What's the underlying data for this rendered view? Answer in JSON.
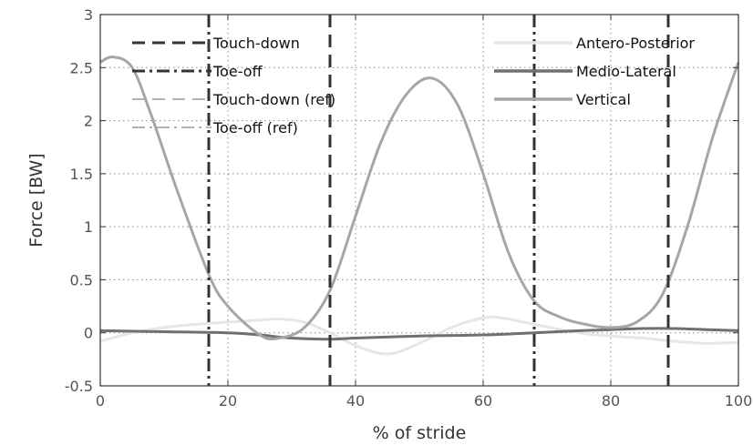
{
  "chart_data": {
    "type": "line",
    "xlabel": "% of stride",
    "ylabel": "Force [BW]",
    "xlim": [
      0,
      100
    ],
    "ylim": [
      -0.5,
      3
    ],
    "xticks": [
      0,
      20,
      40,
      60,
      80,
      100
    ],
    "yticks": [
      -0.5,
      0,
      0.5,
      1,
      1.5,
      2,
      2.5,
      3
    ],
    "grid": true,
    "legend_events_placement": "top-left",
    "legend_series_placement": "top-right",
    "series": [
      {
        "name": "Antero-Posterior",
        "color": "#e6e6e6",
        "x": [
          0,
          5,
          10,
          15,
          20,
          25,
          28,
          32,
          36,
          40,
          45,
          50,
          55,
          60,
          63,
          68,
          75,
          80,
          85,
          90,
          95,
          100
        ],
        "y": [
          -0.08,
          0.0,
          0.05,
          0.08,
          0.1,
          0.12,
          0.13,
          0.1,
          0.0,
          -0.12,
          -0.2,
          -0.1,
          0.05,
          0.14,
          0.14,
          0.08,
          0.0,
          -0.03,
          -0.05,
          -0.08,
          -0.1,
          -0.09
        ]
      },
      {
        "name": "Medio-Lateral",
        "color": "#707070",
        "x": [
          0,
          10,
          20,
          25,
          30,
          36,
          40,
          50,
          60,
          68,
          75,
          80,
          85,
          90,
          95,
          100
        ],
        "y": [
          0.02,
          0.01,
          0.0,
          -0.02,
          -0.05,
          -0.06,
          -0.05,
          -0.03,
          -0.02,
          0.0,
          0.02,
          0.03,
          0.04,
          0.04,
          0.03,
          0.02
        ]
      },
      {
        "name": "Vertical",
        "color": "#a6a6a6",
        "x": [
          0,
          2,
          5,
          8,
          12,
          17,
          20,
          25,
          28,
          32,
          36,
          40,
          44,
          48,
          52,
          56,
          60,
          64,
          68,
          72,
          76,
          80,
          84,
          88,
          92,
          96,
          100
        ],
        "y": [
          2.55,
          2.6,
          2.5,
          2.05,
          1.35,
          0.55,
          0.25,
          -0.02,
          -0.05,
          0.05,
          0.4,
          1.1,
          1.8,
          2.25,
          2.4,
          2.15,
          1.5,
          0.75,
          0.3,
          0.15,
          0.08,
          0.05,
          0.1,
          0.35,
          1.0,
          1.85,
          2.55
        ]
      }
    ],
    "events": [
      {
        "name": "Touch-down",
        "style": "dashed",
        "x": [
          36,
          89
        ]
      },
      {
        "name": "Toe-off",
        "style": "dashdot",
        "x": [
          17,
          68
        ]
      },
      {
        "name": "Touch-down (ref)",
        "style": "dashed-light",
        "x": []
      },
      {
        "name": "Toe-off (ref)",
        "style": "dashdot-light",
        "x": []
      }
    ]
  }
}
